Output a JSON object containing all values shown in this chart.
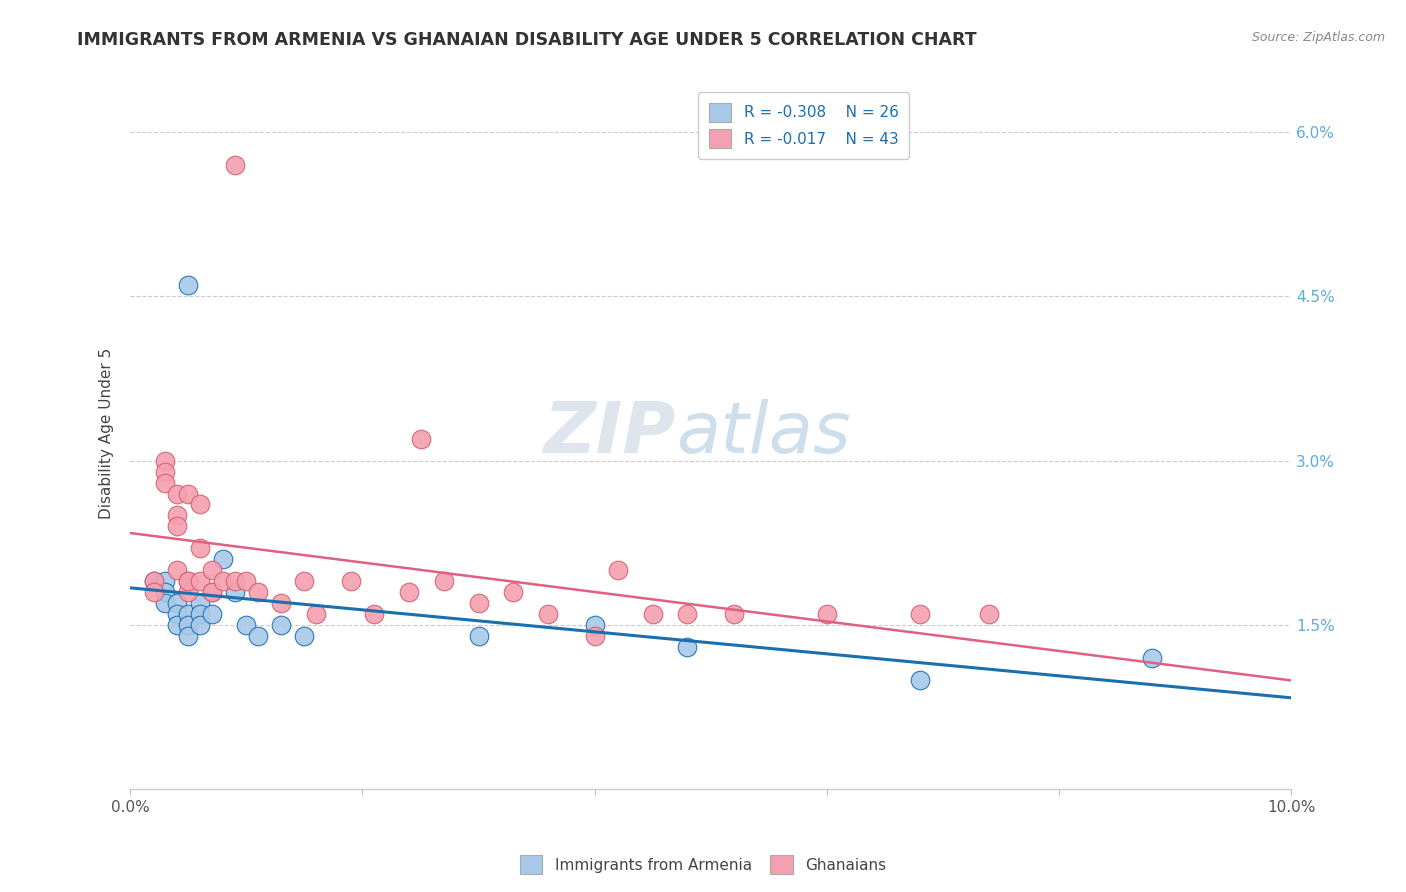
{
  "title": "IMMIGRANTS FROM ARMENIA VS GHANAIAN DISABILITY AGE UNDER 5 CORRELATION CHART",
  "source": "Source: ZipAtlas.com",
  "ylabel": "Disability Age Under 5",
  "legend_label_blue": "Immigrants from Armenia",
  "legend_label_pink": "Ghanaians",
  "r_blue": -0.308,
  "n_blue": 26,
  "r_pink": -0.017,
  "n_pink": 43,
  "xlim": [
    0.0,
    0.1
  ],
  "ylim": [
    0.0,
    0.065
  ],
  "xticks": [
    0.0,
    0.02,
    0.04,
    0.06,
    0.08,
    0.1
  ],
  "yticks": [
    0.0,
    0.015,
    0.03,
    0.045,
    0.06
  ],
  "color_blue": "#a8c8e8",
  "color_pink": "#f4a0b0",
  "line_color_blue": "#1a6faf",
  "line_color_pink": "#e06080",
  "blue_points": [
    [
      0.005,
      0.046
    ],
    [
      0.002,
      0.019
    ],
    [
      0.003,
      0.019
    ],
    [
      0.003,
      0.018
    ],
    [
      0.003,
      0.017
    ],
    [
      0.004,
      0.017
    ],
    [
      0.004,
      0.016
    ],
    [
      0.004,
      0.015
    ],
    [
      0.005,
      0.016
    ],
    [
      0.005,
      0.015
    ],
    [
      0.005,
      0.014
    ],
    [
      0.006,
      0.017
    ],
    [
      0.006,
      0.016
    ],
    [
      0.006,
      0.015
    ],
    [
      0.007,
      0.016
    ],
    [
      0.008,
      0.021
    ],
    [
      0.009,
      0.018
    ],
    [
      0.01,
      0.015
    ],
    [
      0.011,
      0.014
    ],
    [
      0.013,
      0.015
    ],
    [
      0.015,
      0.014
    ],
    [
      0.03,
      0.014
    ],
    [
      0.04,
      0.015
    ],
    [
      0.048,
      0.013
    ],
    [
      0.068,
      0.01
    ],
    [
      0.088,
      0.012
    ]
  ],
  "pink_points": [
    [
      0.009,
      0.057
    ],
    [
      0.002,
      0.019
    ],
    [
      0.002,
      0.018
    ],
    [
      0.003,
      0.03
    ],
    [
      0.003,
      0.029
    ],
    [
      0.003,
      0.028
    ],
    [
      0.004,
      0.027
    ],
    [
      0.004,
      0.025
    ],
    [
      0.004,
      0.024
    ],
    [
      0.004,
      0.02
    ],
    [
      0.005,
      0.019
    ],
    [
      0.005,
      0.018
    ],
    [
      0.005,
      0.027
    ],
    [
      0.005,
      0.019
    ],
    [
      0.006,
      0.026
    ],
    [
      0.006,
      0.022
    ],
    [
      0.006,
      0.019
    ],
    [
      0.007,
      0.02
    ],
    [
      0.007,
      0.018
    ],
    [
      0.007,
      0.018
    ],
    [
      0.008,
      0.019
    ],
    [
      0.009,
      0.019
    ],
    [
      0.01,
      0.019
    ],
    [
      0.011,
      0.018
    ],
    [
      0.013,
      0.017
    ],
    [
      0.015,
      0.019
    ],
    [
      0.016,
      0.016
    ],
    [
      0.019,
      0.019
    ],
    [
      0.021,
      0.016
    ],
    [
      0.024,
      0.018
    ],
    [
      0.025,
      0.032
    ],
    [
      0.027,
      0.019
    ],
    [
      0.03,
      0.017
    ],
    [
      0.033,
      0.018
    ],
    [
      0.036,
      0.016
    ],
    [
      0.04,
      0.014
    ],
    [
      0.042,
      0.02
    ],
    [
      0.045,
      0.016
    ],
    [
      0.048,
      0.016
    ],
    [
      0.052,
      0.016
    ],
    [
      0.06,
      0.016
    ],
    [
      0.068,
      0.016
    ],
    [
      0.074,
      0.016
    ]
  ]
}
